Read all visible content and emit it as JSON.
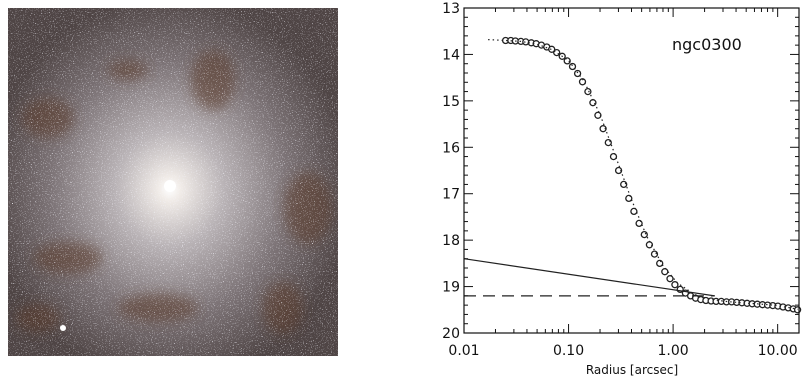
{
  "chart_data": {
    "type": "scatter",
    "object_name": "ngc0300",
    "xlabel": "Radius [arcsec]",
    "ylabel": "",
    "x_scale": "log",
    "xlim": [
      0.01,
      16
    ],
    "ylim": [
      20,
      13
    ],
    "y_reversed": true,
    "grid": false,
    "x_ticks": [
      {
        "value": 0.01,
        "label": "0.01"
      },
      {
        "value": 0.1,
        "label": "0.10"
      },
      {
        "value": 1,
        "label": "1.00"
      },
      {
        "value": 10,
        "label": "10.00"
      }
    ],
    "y_ticks": [
      {
        "value": 13,
        "label": "13"
      },
      {
        "value": 14,
        "label": "14"
      },
      {
        "value": 15,
        "label": "15"
      },
      {
        "value": 16,
        "label": "16"
      },
      {
        "value": 17,
        "label": "17"
      },
      {
        "value": 18,
        "label": "18"
      },
      {
        "value": 19,
        "label": "19"
      },
      {
        "value": 20,
        "label": "20"
      }
    ],
    "series": [
      {
        "style": "open-circle-markers",
        "x": [
          0.025,
          0.028,
          0.031,
          0.035,
          0.039,
          0.044,
          0.049,
          0.055,
          0.062,
          0.069,
          0.077,
          0.087,
          0.097,
          0.109,
          0.122,
          0.136,
          0.153,
          0.171,
          0.191,
          0.214,
          0.24,
          0.269,
          0.301,
          0.337,
          0.377,
          0.422,
          0.473,
          0.53,
          0.593,
          0.664,
          0.744,
          0.833,
          0.933,
          1.04,
          1.17,
          1.31,
          1.47,
          1.64,
          1.84,
          2.06,
          2.31,
          2.58,
          2.89,
          3.24,
          3.63,
          4.06,
          4.55,
          5.1,
          5.71,
          6.39,
          7.16,
          8.02,
          8.98,
          10.06,
          11.26,
          12.6,
          14.1,
          15.5
        ],
        "y": [
          13.7,
          13.7,
          13.71,
          13.72,
          13.73,
          13.75,
          13.77,
          13.8,
          13.84,
          13.89,
          13.96,
          14.04,
          14.14,
          14.26,
          14.41,
          14.59,
          14.8,
          15.04,
          15.31,
          15.6,
          15.9,
          16.2,
          16.5,
          16.8,
          17.1,
          17.38,
          17.64,
          17.88,
          18.1,
          18.3,
          18.5,
          18.68,
          18.83,
          18.96,
          19.06,
          19.14,
          19.2,
          19.25,
          19.28,
          19.3,
          19.31,
          19.32,
          19.32,
          19.33,
          19.33,
          19.34,
          19.35,
          19.36,
          19.37,
          19.38,
          19.39,
          19.4,
          19.41,
          19.42,
          19.44,
          19.46,
          19.48,
          19.5
        ]
      },
      {
        "style": "dotted-model-curve",
        "x": [
          0.017,
          0.025,
          0.035,
          0.05,
          0.07,
          0.1,
          0.14,
          0.2,
          0.28,
          0.4,
          0.56,
          0.8,
          1.1,
          1.6,
          2.2,
          3.2,
          4.5,
          6.3,
          9.0,
          12.7,
          15.5
        ],
        "y": [
          13.68,
          13.7,
          13.72,
          13.78,
          13.9,
          14.13,
          14.57,
          15.29,
          16.18,
          17.13,
          17.92,
          18.55,
          18.92,
          19.17,
          19.27,
          19.32,
          19.35,
          19.37,
          19.4,
          19.45,
          19.49
        ]
      },
      {
        "style": "solid-line",
        "x": [
          0.01,
          2.5
        ],
        "y": [
          18.4,
          19.2
        ]
      },
      {
        "style": "dashed-line",
        "x": [
          0.01,
          2.5
        ],
        "y": [
          19.2,
          19.2
        ]
      }
    ]
  }
}
